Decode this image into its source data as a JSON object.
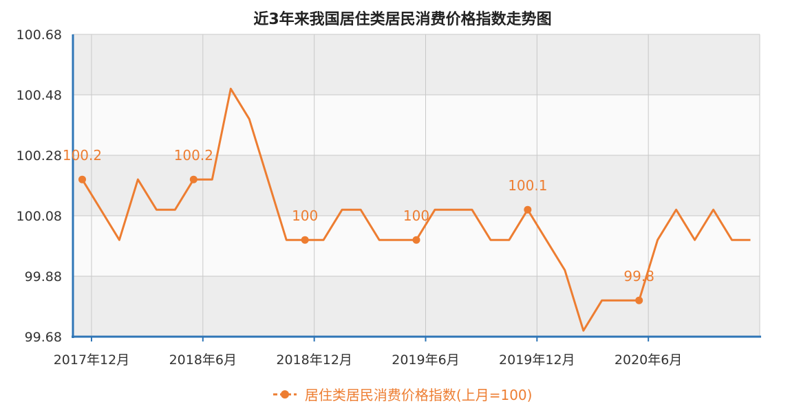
{
  "chart_data": {
    "type": "line",
    "title": "近3年来我国居住类居民消费价格指数走势图",
    "xlabel": "",
    "ylabel": "",
    "x_tick_labels": [
      "2017年12月",
      "2018年6月",
      "2018年12月",
      "2019年6月",
      "2019年12月",
      "2020年6月"
    ],
    "y_tick_labels": [
      "99.68",
      "99.88",
      "100.08",
      "100.28",
      "100.48",
      "100.68"
    ],
    "ylim": [
      99.68,
      100.68
    ],
    "grid": true,
    "legend_position": "bottom",
    "series": [
      {
        "name": "居住类居民消费价格指数(上月=100)",
        "color": "#ed7d31",
        "x": [
          "2017-11",
          "2017-12",
          "2018-01",
          "2018-02",
          "2018-03",
          "2018-04",
          "2018-05",
          "2018-06",
          "2018-07",
          "2018-08",
          "2018-09",
          "2018-10",
          "2018-11",
          "2018-12",
          "2019-01",
          "2019-02",
          "2019-03",
          "2019-04",
          "2019-05",
          "2019-06",
          "2019-07",
          "2019-08",
          "2019-09",
          "2019-10",
          "2019-11",
          "2019-12",
          "2020-01",
          "2020-02",
          "2020-03",
          "2020-04",
          "2020-05",
          "2020-06",
          "2020-07",
          "2020-08",
          "2020-09",
          "2020-10",
          "2020-11"
        ],
        "values": [
          100.2,
          100.1,
          100.0,
          100.2,
          100.1,
          100.1,
          100.2,
          100.2,
          100.5,
          100.4,
          100.2,
          100.0,
          100.0,
          100.0,
          100.1,
          100.1,
          100.0,
          100.0,
          100.0,
          100.1,
          100.1,
          100.1,
          100.0,
          100.0,
          100.1,
          100.0,
          99.9,
          99.7,
          99.8,
          99.8,
          99.8,
          100.0,
          100.1,
          100.0,
          100.1,
          100.0,
          100.0
        ]
      }
    ],
    "data_labels": [
      {
        "x": "2017-11",
        "text": "100.2"
      },
      {
        "x": "2018-05",
        "text": "100.2"
      },
      {
        "x": "2018-11",
        "text": "100"
      },
      {
        "x": "2019-05",
        "text": "100"
      },
      {
        "x": "2019-11",
        "text": "100.1"
      },
      {
        "x": "2020-05",
        "text": "99.8"
      }
    ]
  }
}
